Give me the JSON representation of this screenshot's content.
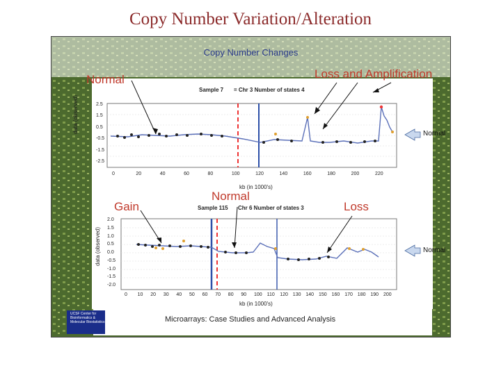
{
  "title": "Copy Number Variation/Alteration",
  "figure": {
    "header": "Copy Number Changes",
    "annotations": {
      "normal_top": "Normal",
      "loss_amp": "Loss and Amplification",
      "normal_mid": "Normal",
      "gain": "Gain",
      "loss": "Loss"
    },
    "right_labels": [
      "Normal",
      "Normal"
    ],
    "plot1": {
      "subtitle_a": "Sample 7",
      "subtitle_b": "= Chr 3 Number of states 4",
      "ylabel": "data (observed)",
      "xlabel": "kb (in 1000's)",
      "x_ticks": [
        "0",
        "20",
        "40",
        "60",
        "80",
        "100",
        "120",
        "140",
        "160",
        "180",
        "200",
        "220"
      ],
      "y_ticks": [
        "2.5",
        "1.5",
        "0.5",
        "-0.5",
        "-1.5",
        "-2.5"
      ]
    },
    "plot2": {
      "subtitle_a": "Sample 115",
      "subtitle_b": "Chr 6 Number of states 3",
      "ylabel": "data (observed)",
      "xlabel": "kb (in 1000's)",
      "x_ticks": [
        "0",
        "10",
        "20",
        "30",
        "40",
        "50",
        "60",
        "70",
        "80",
        "90",
        "100",
        "110",
        "120",
        "130",
        "140",
        "150",
        "160",
        "170",
        "180",
        "190",
        "200"
      ],
      "y_ticks": [
        "2.0",
        "1.5",
        "1.0",
        "0.5",
        "0.0",
        "-0.5",
        "-1.0",
        "-1.5",
        "-2.0"
      ]
    },
    "footer": "Microarrays: Case Studies and Advanced Analysis",
    "logo": "Center for Bioinformatics & Molecular Biostatistics",
    "logo_mark": "UCSF"
  }
}
